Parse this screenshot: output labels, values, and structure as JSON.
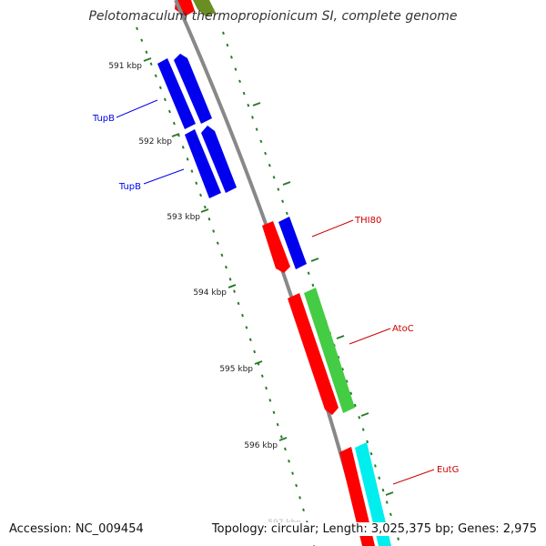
{
  "title": "Pelotomaculum thermopropionicum SI, complete genome",
  "accession": "Accession: NC_009454",
  "topology": "Topology: circular; Length: 3,025,375 bp; Genes: 2,975",
  "colors": {
    "backbone": "#888888",
    "tick": "#2a7a2a",
    "tupB": "#0000ee",
    "red": "#ff0000",
    "green": "#44cc44",
    "cyan": "#00eeee",
    "olive": "#6b8e23"
  },
  "kbp_ticks": [
    {
      "label": "591 kbp"
    },
    {
      "label": "592 kbp"
    },
    {
      "label": "593 kbp"
    },
    {
      "label": "594 kbp"
    },
    {
      "label": "595 kbp"
    },
    {
      "label": "596 kbp"
    },
    {
      "label": "597 kbp"
    }
  ],
  "gene_labels": [
    {
      "name": "TupB",
      "color": "#0000ee"
    },
    {
      "name": "TupB",
      "color": "#0000ee"
    },
    {
      "name": "THI80",
      "color": "#cc0000"
    },
    {
      "name": "AtoC",
      "color": "#cc0000"
    },
    {
      "name": "EutG",
      "color": "#cc0000"
    }
  ]
}
